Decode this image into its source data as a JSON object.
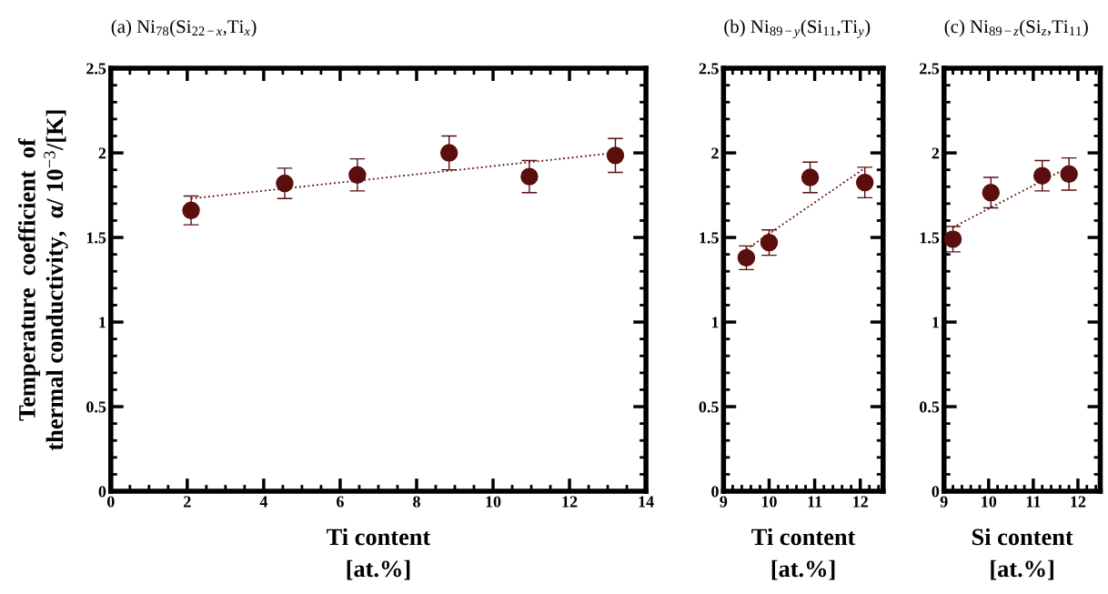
{
  "chart_data": [
    {
      "type": "scatter",
      "title": "(a) Ni$_{78}$(Si$_{22−x}$,Ti$_{x}$)",
      "xlabel": "Ti content\n[at.%]",
      "ylabel": "Temperature  coefficient  of\nthermal conductivity,  α/ 10$^{−3}$/[K]",
      "xlim": [
        0,
        14
      ],
      "xticks": [
        0,
        2,
        4,
        6,
        8,
        10,
        12,
        14
      ],
      "ylim": [
        0,
        2.5
      ],
      "yticks": [
        0,
        0.5,
        1,
        1.5,
        2,
        2.5
      ],
      "grid": false,
      "marker": "circle",
      "series": [
        {
          "color": "#5a0e0e",
          "x": [
            2.1,
            4.55,
            6.45,
            8.85,
            10.95,
            13.2
          ],
          "values": [
            1.66,
            1.82,
            1.87,
            2.0,
            1.86,
            1.985
          ],
          "errors": [
            0.085,
            0.09,
            0.095,
            0.1,
            0.095,
            0.1
          ]
        },
        {
          "type": "line",
          "color": "#5a0e0e",
          "line_style": "dotted",
          "marker": "none",
          "x": [
            2.1,
            13.2
          ],
          "values": [
            1.73,
            2.0
          ]
        }
      ]
    },
    {
      "type": "scatter",
      "title": "(b) Ni$_{89−y}$(Si$_{11}$,Ti$_{y}$)",
      "xlabel": "Ti content\n[at.%]",
      "xlim": [
        9,
        12.5
      ],
      "xticks": [
        9,
        10,
        11,
        12
      ],
      "ylim": [
        0,
        2.5
      ],
      "yticks": [
        0,
        0.5,
        1,
        1.5,
        2,
        2.5
      ],
      "grid": false,
      "marker": "circle",
      "series": [
        {
          "color": "#5a0e0e",
          "x": [
            9.5,
            10.0,
            10.9,
            12.1
          ],
          "values": [
            1.38,
            1.47,
            1.855,
            1.825
          ],
          "errors": [
            0.07,
            0.075,
            0.09,
            0.09
          ]
        },
        {
          "type": "line",
          "color": "#5a0e0e",
          "line_style": "dotted",
          "marker": "none",
          "x": [
            9.5,
            12.1
          ],
          "values": [
            1.43,
            1.91
          ]
        }
      ]
    },
    {
      "type": "scatter",
      "title": "(c) Ni$_{89−z}$(Si$_{z}$,Ti$_{11}$)",
      "xlabel": "Si content\n[at.%]",
      "xlim": [
        9,
        12.5
      ],
      "xticks": [
        9,
        10,
        11,
        12
      ],
      "ylim": [
        0,
        2.5
      ],
      "yticks": [
        0,
        0.5,
        1,
        1.5,
        2,
        2.5
      ],
      "grid": false,
      "marker": "circle",
      "series": [
        {
          "color": "#5a0e0e",
          "x": [
            9.2,
            10.05,
            11.2,
            11.8
          ],
          "values": [
            1.49,
            1.765,
            1.865,
            1.875
          ],
          "errors": [
            0.075,
            0.09,
            0.09,
            0.095
          ]
        },
        {
          "type": "line",
          "color": "#5a0e0e",
          "line_style": "dotted",
          "marker": "none",
          "x": [
            9.2,
            11.6
          ],
          "values": [
            1.56,
            1.89
          ]
        }
      ]
    }
  ]
}
